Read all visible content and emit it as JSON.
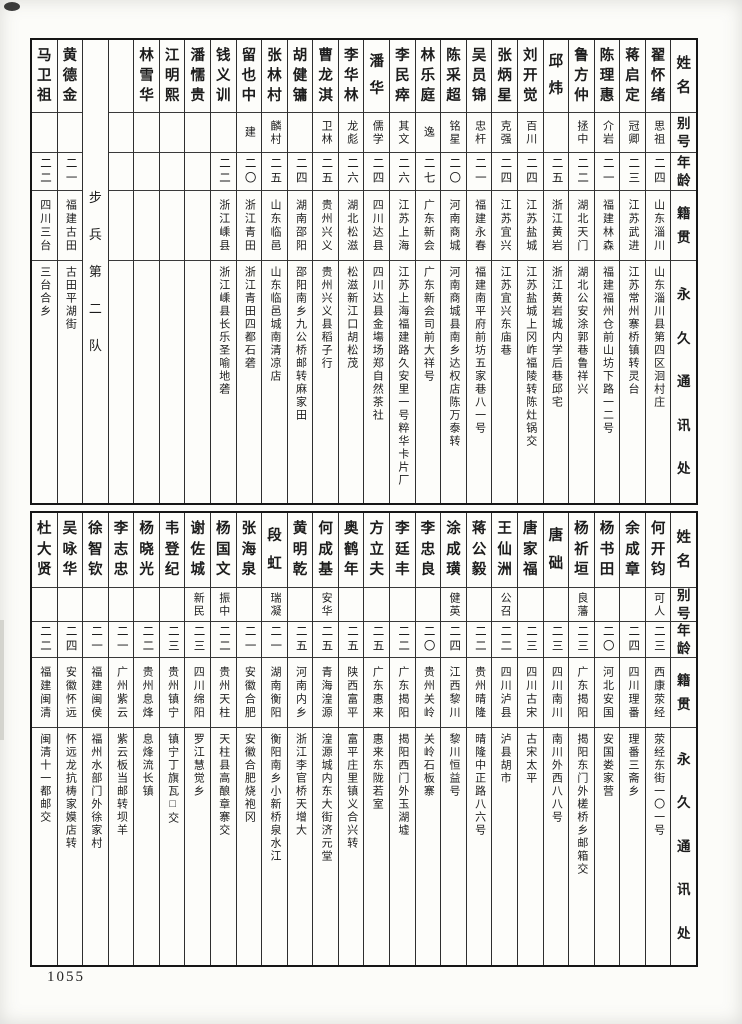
{
  "page_number": "1055",
  "headers": {
    "name": "姓名",
    "alias": "别号",
    "age": "年龄",
    "native": "籍贯",
    "address": "永久通讯处"
  },
  "tables": [
    {
      "id": "top",
      "section_label": "步兵第二队",
      "columns": [
        {
          "name": "翟怀绪",
          "alias": "思祖",
          "age": "二四",
          "native": "山东淄川",
          "address": "山东淄川县第四区洄村庄"
        },
        {
          "name": "蒋启定",
          "alias": "冠卿",
          "age": "二三",
          "native": "江苏武进",
          "address": "江苏常州寨桥镇转灵台"
        },
        {
          "name": "陈理惠",
          "alias": "介岩",
          "age": "二一",
          "native": "福建林森",
          "address": "福建福州仓前山坊下路一二号"
        },
        {
          "name": "鲁方仲",
          "alias": "拯中",
          "age": "二二",
          "native": "湖北天门",
          "address": "湖北公安涂郭巷鲁祥兴"
        },
        {
          "name": "邱炜",
          "alias": "",
          "age": "二五",
          "native": "浙江黄岩",
          "address": "浙江黄岩城内学后巷邱宅"
        },
        {
          "name": "刘开觉",
          "alias": "百川",
          "age": "二四",
          "native": "江苏盐城",
          "address": "江苏盐城上冈岞福陵转陈灶锅交"
        },
        {
          "name": "张炳星",
          "alias": "克强",
          "age": "二四",
          "native": "江苏宜兴",
          "address": "江苏宜兴东庙巷"
        },
        {
          "name": "吴员锦",
          "alias": "忠杆",
          "age": "二一",
          "native": "福建永春",
          "address": "福建南平府前坊五家巷八一号"
        },
        {
          "name": "陈采超",
          "alias": "铭星",
          "age": "二〇",
          "native": "河南商城",
          "address": "河南商城县南乡达权店陈万泰转"
        },
        {
          "name": "林乐庭",
          "alias": "逸",
          "age": "二七",
          "native": "广东新会",
          "address": "广东新会司前大祥号"
        },
        {
          "name": "李民瘁",
          "alias": "其文",
          "age": "二六",
          "native": "江苏上海",
          "address": "江苏上海福建路久安里一号粹华卡片厂"
        },
        {
          "name": "潘华",
          "alias": "儒学",
          "age": "二四",
          "native": "四川达县",
          "address": "四川达县金塲场郑自然茶社"
        },
        {
          "name": "李华林",
          "alias": "龙彪",
          "age": "二六",
          "native": "湖北松滋",
          "address": "松滋新江口胡松茂"
        },
        {
          "name": "曹龙淇",
          "alias": "卫林",
          "age": "二五",
          "native": "贵州兴义",
          "address": "贵州兴义县稻子行"
        },
        {
          "name": "胡健镛",
          "alias": "",
          "age": "二四",
          "native": "湖南邵阳",
          "address": "邵阳南乡九公桥邮转麻家田"
        },
        {
          "name": "张林村",
          "alias": "麟村",
          "age": "二五",
          "native": "山东临邑",
          "address": "山东临邑城南清凉店"
        },
        {
          "name": "留也中",
          "alias": "建",
          "age": "二〇",
          "native": "浙江青田",
          "address": "浙江青田四都石砻"
        },
        {
          "name": "钱义训",
          "alias": "",
          "age": "二二",
          "native": "浙江嵊县",
          "address": "浙江嵊县长乐圣喻地砻"
        },
        {
          "name": "潘懦贵",
          "alias": "",
          "age": "",
          "native": "",
          "address": ""
        },
        {
          "name": "江明熙",
          "alias": "",
          "age": "",
          "native": "",
          "address": ""
        },
        {
          "name": "林雪华",
          "alias": "",
          "age": "",
          "native": "",
          "address": ""
        },
        {
          "type": "empty"
        },
        {
          "type": "section"
        },
        {
          "name": "黄德金",
          "alias": "",
          "age": "二一",
          "native": "福建古田",
          "address": "古田平湖街"
        },
        {
          "name": "马卫祖",
          "alias": "",
          "age": "二二",
          "native": "四川三台",
          "address": "三台合乡"
        }
      ]
    },
    {
      "id": "bottom",
      "columns": [
        {
          "name": "何开钧",
          "alias": "可人",
          "age": "二三",
          "native": "西康荥经",
          "address": "荥经东街一〇一号"
        },
        {
          "name": "余成章",
          "alias": "",
          "age": "二四",
          "native": "四川理番",
          "address": "理番三斋乡"
        },
        {
          "name": "杨书田",
          "alias": "",
          "age": "二〇",
          "native": "河北安国",
          "address": "安国娄家营"
        },
        {
          "name": "杨祈垣",
          "alias": "良藩",
          "age": "二三",
          "native": "广东揭阳",
          "address": "揭阳东门外槎桥乡邮箱交"
        },
        {
          "name": "唐础",
          "alias": "",
          "age": "二三",
          "native": "四川南川",
          "address": "南川外西八八号"
        },
        {
          "name": "唐家福",
          "alias": "",
          "age": "二三",
          "native": "四川古宋",
          "address": "古宋太平"
        },
        {
          "name": "王仙洲",
          "alias": "公召",
          "age": "二二",
          "native": "四川泸县",
          "address": "泸县胡市"
        },
        {
          "name": "蒋公毅",
          "alias": "",
          "age": "二二",
          "native": "贵州晴隆",
          "address": "晴隆中正路八六号"
        },
        {
          "name": "涂成璜",
          "alias": "健英",
          "age": "二四",
          "native": "江西黎川",
          "address": "黎川恒益号"
        },
        {
          "name": "李忠良",
          "alias": "",
          "age": "二〇",
          "native": "贵州关岭",
          "address": "关岭石板寨"
        },
        {
          "name": "李廷丰",
          "alias": "",
          "age": "二二",
          "native": "广东揭阳",
          "address": "揭阳西门外玉湖墟"
        },
        {
          "name": "方立夫",
          "alias": "",
          "age": "二五",
          "native": "广东惠来",
          "address": "惠来东陇若室"
        },
        {
          "name": "奥鹤年",
          "alias": "",
          "age": "二五",
          "native": "陕西富平",
          "address": "富平庄里镇义合兴转"
        },
        {
          "name": "何成基",
          "alias": "安华",
          "age": "二五",
          "native": "青海湟源",
          "address": "湟源城内东大街济元堂"
        },
        {
          "name": "黄明乾",
          "alias": "",
          "age": "二五",
          "native": "河南内乡",
          "address": "浙江李官桥天增大"
        },
        {
          "name": "段虹",
          "alias": "瑞凝",
          "age": "二一",
          "native": "湖南衡阳",
          "address": "衡阳南乡小新桥泉水江"
        },
        {
          "name": "张海泉",
          "alias": "",
          "age": "二一",
          "native": "安徽合肥",
          "address": "安徽合肥烧袍冈"
        },
        {
          "name": "杨国文",
          "alias": "振中",
          "age": "二二",
          "native": "贵州天柱",
          "address": "天柱县高酿章寨交"
        },
        {
          "name": "谢佐城",
          "alias": "新民",
          "age": "二三",
          "native": "四川绵阳",
          "address": "罗江慧觉乡"
        },
        {
          "name": "韦登纪",
          "alias": "",
          "age": "二三",
          "native": "贵州镇宁",
          "address": "镇宁丁旗瓦□交"
        },
        {
          "name": "杨晓光",
          "alias": "",
          "age": "二二",
          "native": "贵州息烽",
          "address": "息烽流长镇"
        },
        {
          "name": "李志忠",
          "alias": "",
          "age": "二一",
          "native": "广州紫云",
          "address": "紫云板当邮转坝羊"
        },
        {
          "name": "徐智钦",
          "alias": "",
          "age": "二一",
          "native": "福建闽侯",
          "address": "福州水部门外徐家村"
        },
        {
          "name": "吴咏华",
          "alias": "",
          "age": "二四",
          "native": "安徽怀远",
          "address": "怀远龙抗梼家嫫店转"
        },
        {
          "name": "杜大贤",
          "alias": "",
          "age": "二二",
          "native": "福建闽清",
          "address": "闽清十一都邮交"
        }
      ]
    }
  ]
}
